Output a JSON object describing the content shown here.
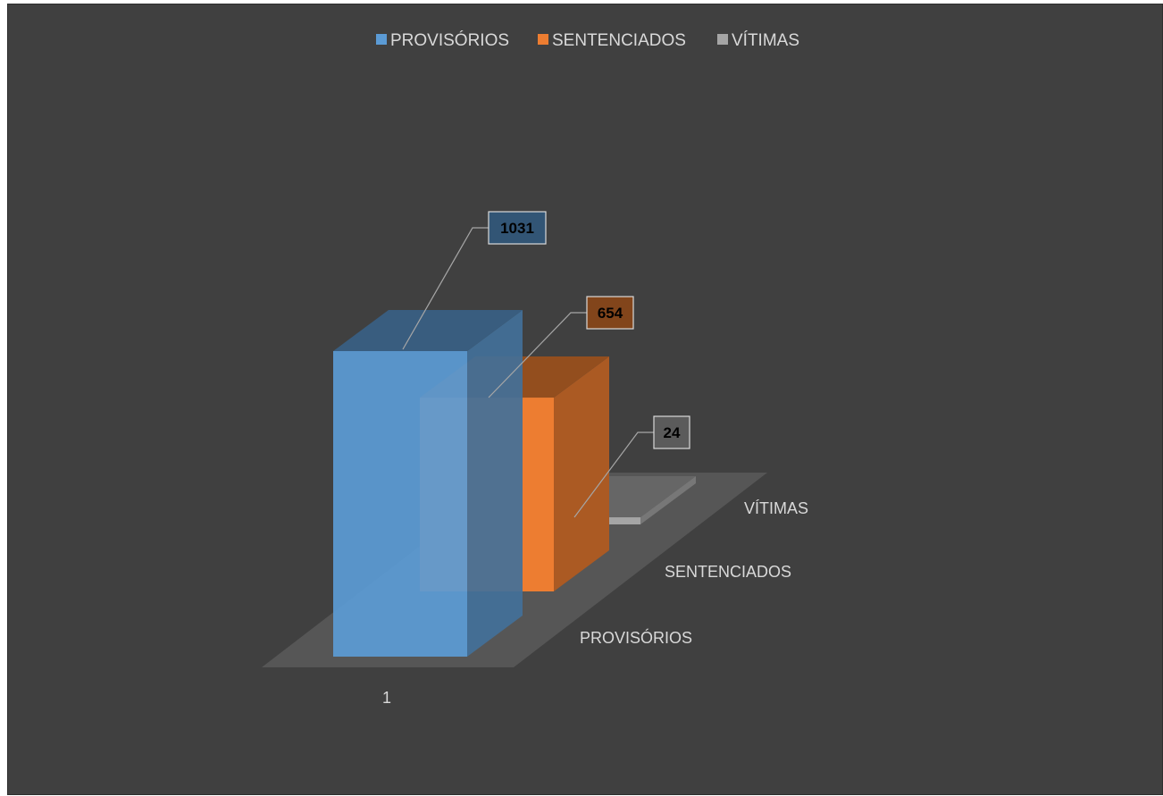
{
  "chart_data": {
    "type": "bar",
    "categories": [
      "1"
    ],
    "series": [
      {
        "name": "PROVISÓRIOS",
        "values": [
          1031
        ],
        "color": "#5b9bd5"
      },
      {
        "name": "SENTENCIADOS",
        "values": [
          654
        ],
        "color": "#ed7d31"
      },
      {
        "name": "VÍTIMAS",
        "values": [
          24
        ],
        "color": "#a5a5a5"
      }
    ],
    "depth_axis_labels": [
      "PROVISÓRIOS",
      "SENTENCIADOS",
      "VÍTIMAS"
    ],
    "data_labels": [
      "1031",
      "654",
      "24"
    ],
    "legend_position": "top",
    "style": "3d-column",
    "background_color": "#404040"
  }
}
